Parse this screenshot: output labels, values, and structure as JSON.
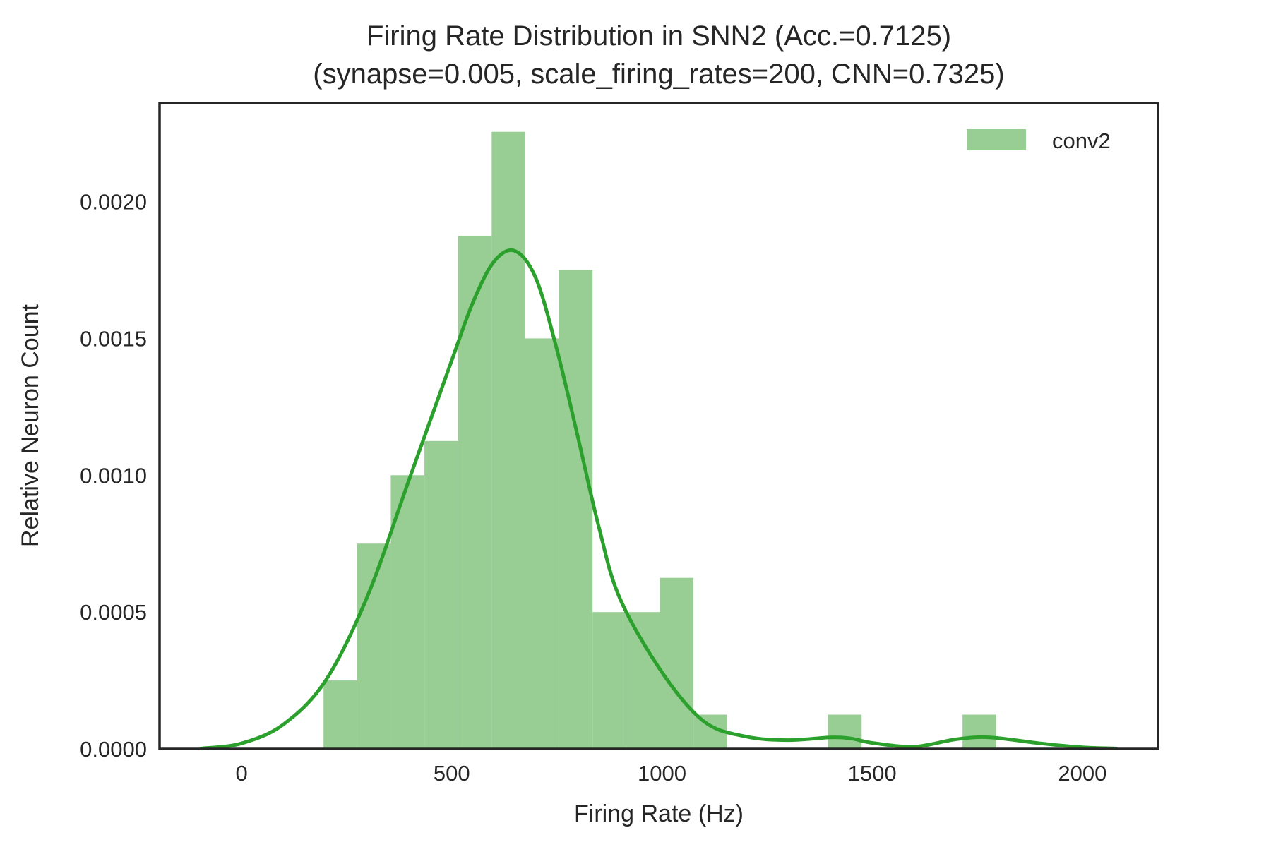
{
  "chart_data": {
    "type": "bar",
    "title": "Firing Rate Distribution in SNN2 (Acc.=0.7125)",
    "subtitle": "(synapse=0.005, scale_firing_rates=200, CNN=0.7325)",
    "xlabel": "Firing Rate (Hz)",
    "ylabel": "Relative Neuron Count",
    "xlim": [
      -195,
      2180
    ],
    "ylim": [
      0,
      0.00236
    ],
    "xticks": [
      0,
      500,
      1000,
      1500,
      2000
    ],
    "xtick_labels": [
      "0",
      "500",
      "1000",
      "1500",
      "2000"
    ],
    "yticks": [
      0,
      0.0005,
      0.001,
      0.0015,
      0.002
    ],
    "ytick_labels": [
      "0.0000",
      "0.0005",
      "0.0010",
      "0.0015",
      "0.0020"
    ],
    "grid": false,
    "legend_position": "top-right",
    "series": [
      {
        "name": "conv2",
        "kind": "histogram",
        "color": "#2ca02c",
        "bar_color": "#98ce94",
        "bins": [
          {
            "x0": 195,
            "x1": 275,
            "value": 0.00025
          },
          {
            "x0": 275,
            "x1": 355,
            "value": 0.00075
          },
          {
            "x0": 355,
            "x1": 435,
            "value": 0.001
          },
          {
            "x0": 435,
            "x1": 515,
            "value": 0.001125
          },
          {
            "x0": 515,
            "x1": 595,
            "value": 0.001875
          },
          {
            "x0": 595,
            "x1": 675,
            "value": 0.002255
          },
          {
            "x0": 675,
            "x1": 755,
            "value": 0.0015
          },
          {
            "x0": 755,
            "x1": 835,
            "value": 0.00175
          },
          {
            "x0": 835,
            "x1": 915,
            "value": 0.0005
          },
          {
            "x0": 915,
            "x1": 995,
            "value": 0.0005
          },
          {
            "x0": 995,
            "x1": 1075,
            "value": 0.000625
          },
          {
            "x0": 1075,
            "x1": 1155,
            "value": 0.000125
          },
          {
            "x0": 1155,
            "x1": 1235,
            "value": 0
          },
          {
            "x0": 1235,
            "x1": 1315,
            "value": 0
          },
          {
            "x0": 1315,
            "x1": 1395,
            "value": 0
          },
          {
            "x0": 1395,
            "x1": 1475,
            "value": 0.000125
          },
          {
            "x0": 1475,
            "x1": 1555,
            "value": 0
          },
          {
            "x0": 1555,
            "x1": 1635,
            "value": 0
          },
          {
            "x0": 1635,
            "x1": 1715,
            "value": 0
          },
          {
            "x0": 1715,
            "x1": 1795,
            "value": 0.000125
          }
        ],
        "kde": {
          "x": [
            -95,
            0,
            100,
            200,
            300,
            400,
            500,
            550,
            600,
            650,
            700,
            750,
            800,
            850,
            900,
            1000,
            1100,
            1200,
            1300,
            1400,
            1450,
            1500,
            1600,
            1700,
            1780,
            1900,
            2000,
            2080
          ],
          "y": [
            1.5e-06,
            2e-05,
            9e-05,
            0.00025,
            0.00056,
            0.00099,
            0.00142,
            0.00163,
            0.00178,
            0.00182,
            0.00172,
            0.00146,
            0.00114,
            0.00081,
            0.00055,
            0.00028,
            0.0001,
            4.5e-05,
            3.2e-05,
            4.2e-05,
            3.8e-05,
            2.2e-05,
            8e-06,
            3.5e-05,
            4.2e-05,
            2e-05,
            6e-06,
            1.5e-06
          ]
        }
      }
    ]
  }
}
